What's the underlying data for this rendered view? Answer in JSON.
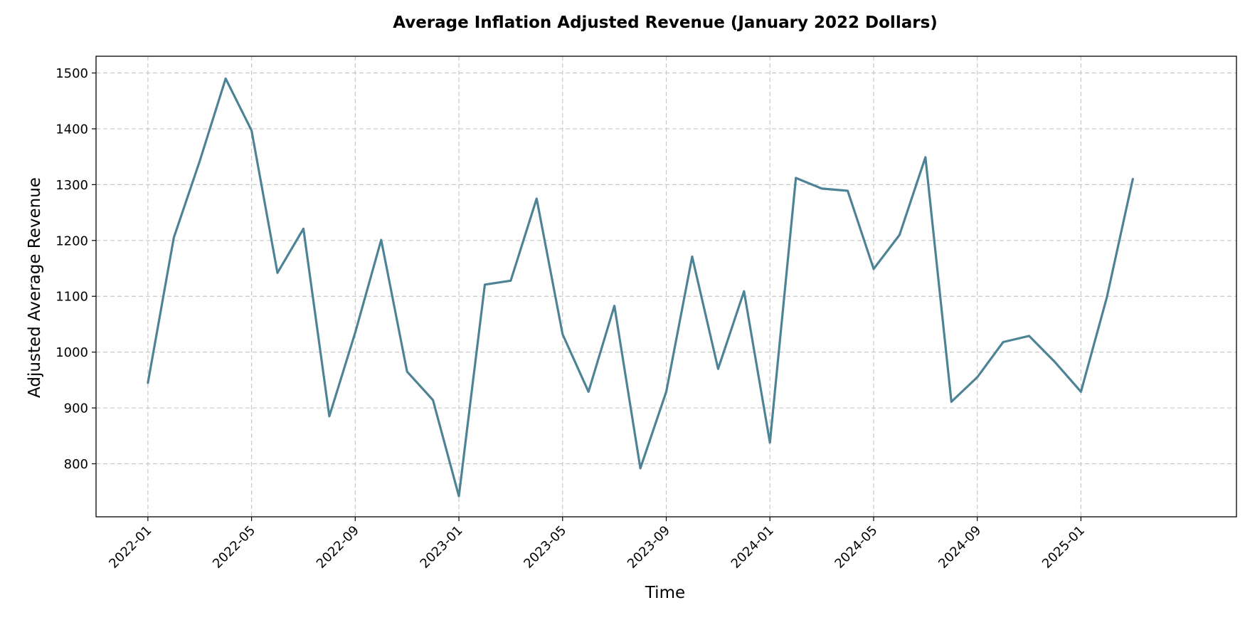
{
  "chart_data": {
    "type": "line",
    "title": "Average Inflation Adjusted Revenue (January 2022 Dollars)",
    "xlabel": "Time",
    "ylabel": "Adjusted Average Revenue",
    "x_tick_labels": [
      "2022-01",
      "2022-05",
      "2022-09",
      "2023-01",
      "2023-05",
      "2023-09",
      "2024-01",
      "2024-05",
      "2024-09",
      "2025-01"
    ],
    "y_ticks": [
      800,
      900,
      1000,
      1100,
      1200,
      1300,
      1400,
      1500
    ],
    "ylim": [
      705,
      1530
    ],
    "xlim": [
      "2021-11",
      "2025-07"
    ],
    "grid": true,
    "line_color": "#4e8396",
    "series": [
      {
        "x": [
          "2022-01",
          "2022-02",
          "2022-03",
          "2022-04",
          "2022-05",
          "2022-06",
          "2022-07",
          "2022-08",
          "2022-09",
          "2022-10",
          "2022-11",
          "2022-12",
          "2023-01",
          "2023-02",
          "2023-03",
          "2023-04",
          "2023-05",
          "2023-06",
          "2023-07",
          "2023-08",
          "2023-09",
          "2023-10",
          "2023-11",
          "2023-12",
          "2024-01",
          "2024-02",
          "2024-03",
          "2024-04",
          "2024-05",
          "2024-06",
          "2024-07",
          "2024-08",
          "2024-09",
          "2024-10",
          "2024-11",
          "2024-12",
          "2025-01",
          "2025-02",
          "2025-03"
        ],
        "values": [
          945,
          1205,
          1342,
          1490,
          1397,
          1142,
          1221,
          885,
          1035,
          1201,
          965,
          914,
          742,
          1121,
          1128,
          1275,
          1032,
          929,
          1083,
          792,
          929,
          1171,
          970,
          1109,
          838,
          1312,
          1293,
          1289,
          1149,
          1210,
          1349,
          911,
          955,
          1018,
          1029,
          982,
          929,
          1098,
          1310
        ]
      }
    ]
  }
}
